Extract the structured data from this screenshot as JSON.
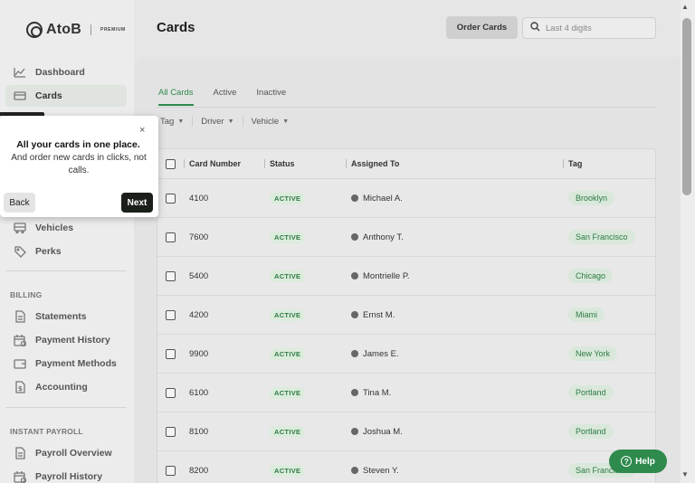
{
  "brand": {
    "name": "AtoB",
    "tier": "PREMIUM"
  },
  "sidebar": {
    "items": [
      {
        "label": "Dashboard",
        "icon": "chart-line-icon",
        "top": 0
      },
      {
        "label": "Cards",
        "icon": "card-icon",
        "active": true
      },
      {
        "label": "Vehicles",
        "icon": "truck-icon"
      },
      {
        "label": "Perks",
        "icon": "tag-icon"
      }
    ],
    "billing_label": "BILLING",
    "billing": [
      {
        "label": "Statements",
        "icon": "document-icon"
      },
      {
        "label": "Payment History",
        "icon": "calendar-icon"
      },
      {
        "label": "Payment Methods",
        "icon": "wallet-icon"
      },
      {
        "label": "Accounting",
        "icon": "dollar-doc-icon"
      }
    ],
    "payroll_label": "INSTANT PAYROLL",
    "payroll": [
      {
        "label": "Payroll Overview",
        "icon": "document-icon"
      },
      {
        "label": "Payroll History",
        "icon": "calendar-icon"
      }
    ]
  },
  "header": {
    "title": "Cards",
    "order_button": "Order Cards",
    "search_placeholder": "Last 4 digits"
  },
  "tabs": [
    "All Cards",
    "Active",
    "Inactive"
  ],
  "filters": [
    "Tag",
    "Driver",
    "Vehicle"
  ],
  "table": {
    "columns": [
      "Card Number",
      "Status",
      "Assigned To",
      "Tag"
    ],
    "rows": [
      {
        "card": "4100",
        "status": "ACTIVE",
        "assigned": "Michael A.",
        "tag": "Brooklyn"
      },
      {
        "card": "7600",
        "status": "ACTIVE",
        "assigned": "Anthony T.",
        "tag": "San Francisco"
      },
      {
        "card": "5400",
        "status": "ACTIVE",
        "assigned": "Montrielle P.",
        "tag": "Chicago"
      },
      {
        "card": "4200",
        "status": "ACTIVE",
        "assigned": "Ernst M.",
        "tag": "Miami"
      },
      {
        "card": "9900",
        "status": "ACTIVE",
        "assigned": "James E.",
        "tag": "New York"
      },
      {
        "card": "6100",
        "status": "ACTIVE",
        "assigned": "Tina M.",
        "tag": "Portland"
      },
      {
        "card": "8100",
        "status": "ACTIVE",
        "assigned": "Joshua M.",
        "tag": "Portland"
      },
      {
        "card": "8200",
        "status": "ACTIVE",
        "assigned": "Steven Y.",
        "tag": "San Francisco"
      }
    ]
  },
  "popover": {
    "title": "All your cards in one place.",
    "body": "And order new cards in clicks, not calls.",
    "back": "Back",
    "next": "Next",
    "close": "×"
  },
  "help": {
    "label": "Help",
    "glyph": "?"
  },
  "colors": {
    "accent": "#2f8a4e",
    "status_bg": "#dcecdc",
    "dark_button": "#1a1f1a"
  }
}
